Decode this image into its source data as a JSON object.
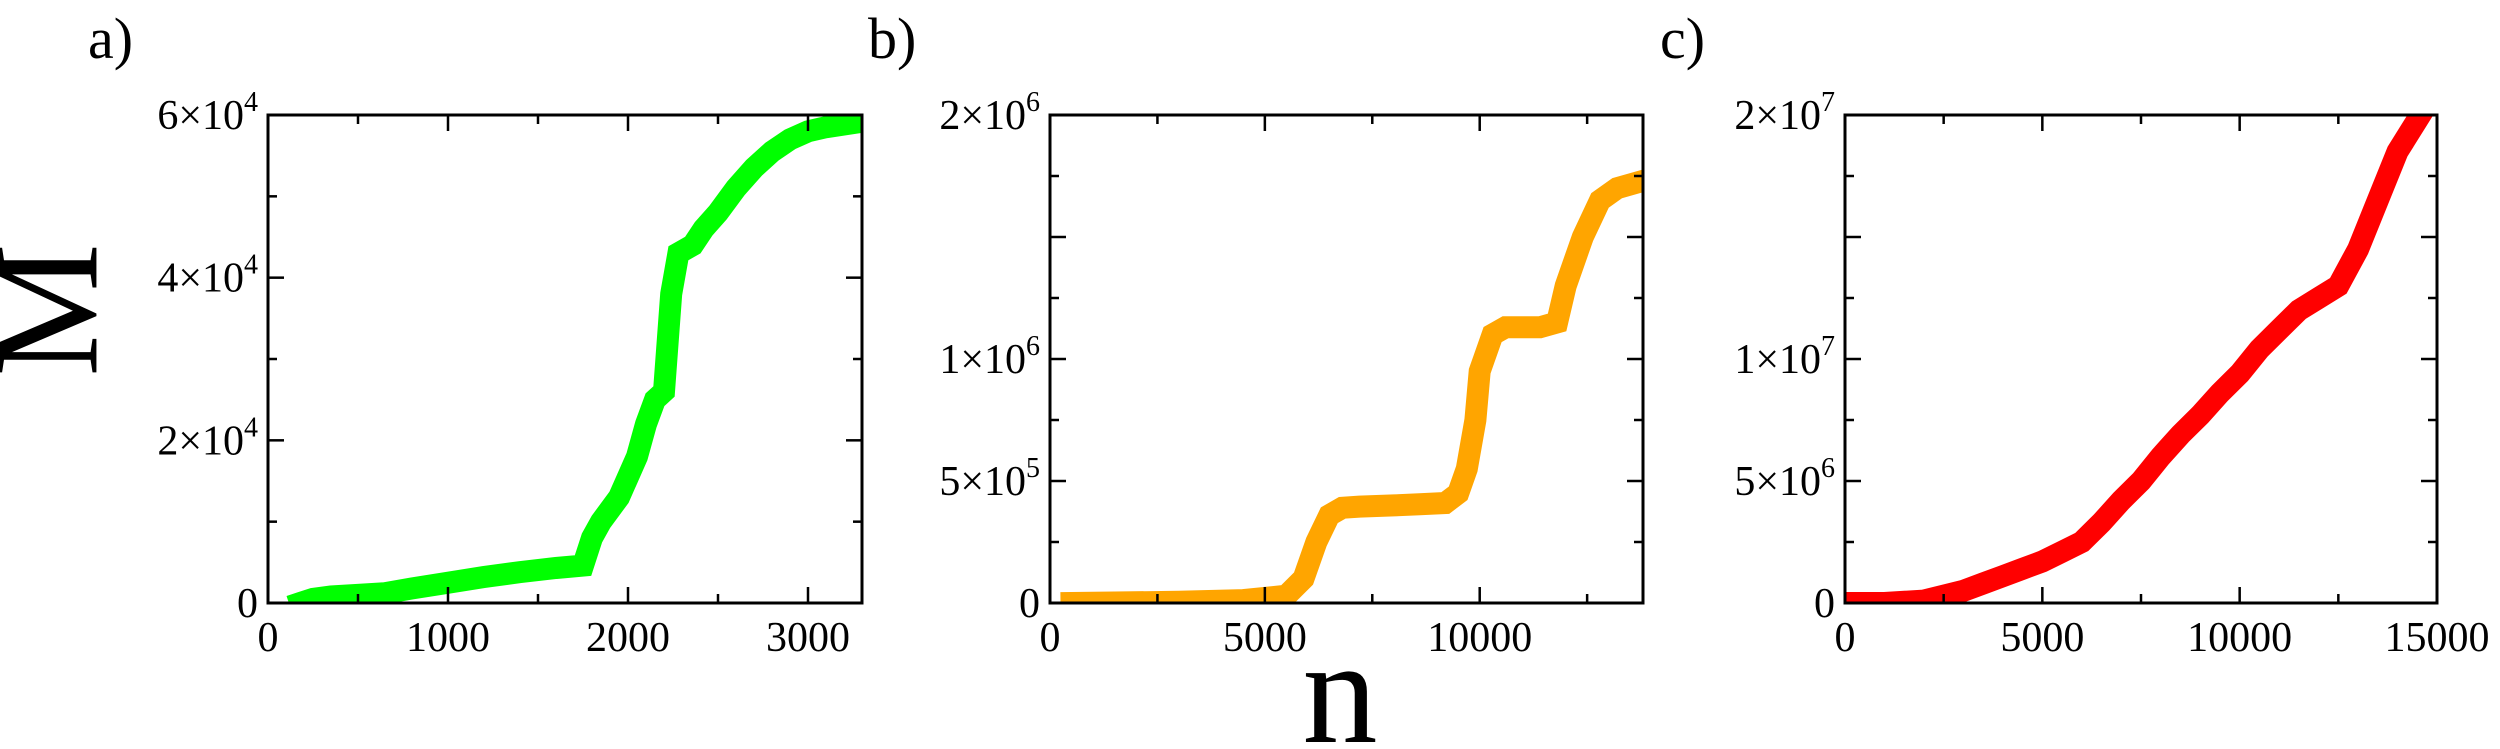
{
  "figure": {
    "ylabel": "M",
    "xlabel": "n"
  },
  "chart_data": [
    {
      "type": "line",
      "panel_label": "a)",
      "color": "#00ff00",
      "xlim": [
        0,
        3300
      ],
      "ylim": [
        0,
        60000
      ],
      "xticks": [
        0,
        1000,
        2000,
        3000
      ],
      "xtick_labels": [
        "0",
        "1000",
        "2000",
        "3000"
      ],
      "yticks": [
        0,
        20000,
        40000,
        60000
      ],
      "ytick_labels": [
        {
          "mant": "0",
          "exp": ""
        },
        {
          "mant": "2×10",
          "exp": "4"
        },
        {
          "mant": "4×10",
          "exp": "4"
        },
        {
          "mant": "6×10",
          "exp": "4"
        }
      ],
      "xminor": [
        500,
        1500,
        2500
      ],
      "yminor": [
        10000,
        30000,
        50000
      ],
      "series": [
        {
          "x": [
            180,
            250,
            350,
            500,
            650,
            800,
            1000,
            1200,
            1400,
            1600,
            1750,
            1800,
            1850,
            1950,
            2050,
            2100,
            2150,
            2200,
            2240,
            2280,
            2320,
            2360,
            2420,
            2500,
            2600,
            2700,
            2800,
            2900,
            3000,
            3100,
            3250
          ],
          "y": [
            0,
            500,
            800,
            1000,
            1200,
            1800,
            2500,
            3200,
            3800,
            4300,
            4600,
            8000,
            10000,
            13000,
            18000,
            22000,
            25000,
            26000,
            38000,
            43000,
            43500,
            44000,
            46000,
            48000,
            51000,
            53500,
            55500,
            57000,
            58000,
            58500,
            59000
          ]
        }
      ]
    },
    {
      "type": "line",
      "panel_label": "b)",
      "color": "#ffa500",
      "xlim": [
        0,
        13800
      ],
      "ylim": [
        0,
        2000000
      ],
      "xticks": [
        0,
        5000,
        10000
      ],
      "xtick_labels": [
        "0",
        "5000",
        "10000"
      ],
      "yticks": [
        0,
        500000,
        1000000,
        1500000,
        2000000
      ],
      "ytick_labels": [
        {
          "mant": "0",
          "exp": ""
        },
        {
          "mant": "5×10",
          "exp": "5"
        },
        {
          "mant": "1×10",
          "exp": "6"
        },
        {
          "mant": "",
          "exp": ""
        },
        {
          "mant": "2×10",
          "exp": "6"
        }
      ],
      "xminor": [
        2500,
        7500,
        12500
      ],
      "yminor": [
        250000,
        750000,
        1250000,
        1750000
      ],
      "series": [
        {
          "x": [
            500,
            1500,
            3000,
            4500,
            5500,
            5900,
            6200,
            6500,
            6800,
            7200,
            8000,
            8600,
            9200,
            9500,
            9700,
            9900,
            10000,
            10100,
            10300,
            10600,
            11000,
            11400,
            11800,
            12000,
            12400,
            12800,
            13200,
            13600
          ],
          "y": [
            0,
            2000,
            5000,
            12000,
            30000,
            100000,
            250000,
            360000,
            390000,
            395000,
            400000,
            405000,
            410000,
            450000,
            550000,
            750000,
            950000,
            1000000,
            1100000,
            1130000,
            1130000,
            1130000,
            1150000,
            1300000,
            1500000,
            1650000,
            1700000,
            1720000
          ]
        }
      ]
    },
    {
      "type": "line",
      "panel_label": "c)",
      "color": "#ff0000",
      "xlim": [
        0,
        15000
      ],
      "ylim": [
        0,
        20000000
      ],
      "xticks": [
        0,
        5000,
        10000,
        15000
      ],
      "xtick_labels": [
        "0",
        "5000",
        "10000",
        "15000"
      ],
      "yticks": [
        0,
        5000000,
        10000000,
        15000000,
        20000000
      ],
      "ytick_labels": [
        {
          "mant": "0",
          "exp": ""
        },
        {
          "mant": "5×10",
          "exp": "6"
        },
        {
          "mant": "1×10",
          "exp": "7"
        },
        {
          "mant": "",
          "exp": ""
        },
        {
          "mant": "2×10",
          "exp": "7"
        }
      ],
      "xminor": [
        2500,
        7500,
        12500
      ],
      "yminor": [
        2500000,
        7500000,
        12500000,
        17500000
      ],
      "series": [
        {
          "x": [
            200,
            1000,
            2000,
            2500,
            3000,
            3500,
            4000,
            4500,
            5000,
            5500,
            6000,
            6500,
            7000,
            7500,
            8000,
            8500,
            9000,
            9500,
            10000,
            10500,
            11000,
            11500,
            12000,
            12500,
            13000,
            13500,
            14000,
            14500
          ],
          "y": [
            0,
            0,
            100000,
            300000,
            500000,
            800000,
            1100000,
            1400000,
            1700000,
            2100000,
            2500000,
            3300000,
            4200000,
            5000000,
            6000000,
            6900000,
            7700000,
            8600000,
            9400000,
            10400000,
            11200000,
            12000000,
            12500000,
            13000000,
            14500000,
            16500000,
            18500000,
            19800000
          ]
        }
      ]
    }
  ]
}
